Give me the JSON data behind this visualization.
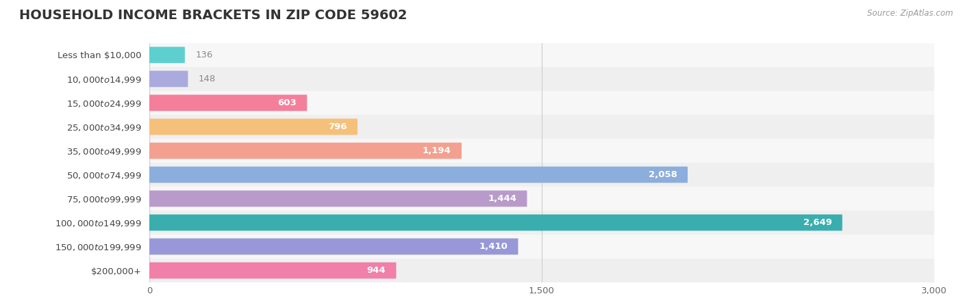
{
  "title": "HOUSEHOLD INCOME BRACKETS IN ZIP CODE 59602",
  "source": "Source: ZipAtlas.com",
  "categories": [
    "Less than $10,000",
    "$10,000 to $14,999",
    "$15,000 to $24,999",
    "$25,000 to $34,999",
    "$35,000 to $49,999",
    "$50,000 to $74,999",
    "$75,000 to $99,999",
    "$100,000 to $149,999",
    "$150,000 to $199,999",
    "$200,000+"
  ],
  "values": [
    136,
    148,
    603,
    796,
    1194,
    2058,
    1444,
    2649,
    1410,
    944
  ],
  "bar_colors": [
    "#5ECFCF",
    "#AAAADE",
    "#F47F9A",
    "#F5C07A",
    "#F4A090",
    "#8BAEDD",
    "#B89BCB",
    "#3AAEAE",
    "#9898D8",
    "#F080A8"
  ],
  "row_bg_colors": [
    "#F7F7F7",
    "#EFEFEF"
  ],
  "value_label_color_inside": "#FFFFFF",
  "value_label_color_outside": "#888888",
  "xlim": [
    0,
    3000
  ],
  "xticks": [
    0,
    1500,
    3000
  ],
  "background_color": "#FFFFFF",
  "title_fontsize": 14,
  "label_fontsize": 9.5,
  "tick_fontsize": 9.5,
  "inside_threshold": 400
}
